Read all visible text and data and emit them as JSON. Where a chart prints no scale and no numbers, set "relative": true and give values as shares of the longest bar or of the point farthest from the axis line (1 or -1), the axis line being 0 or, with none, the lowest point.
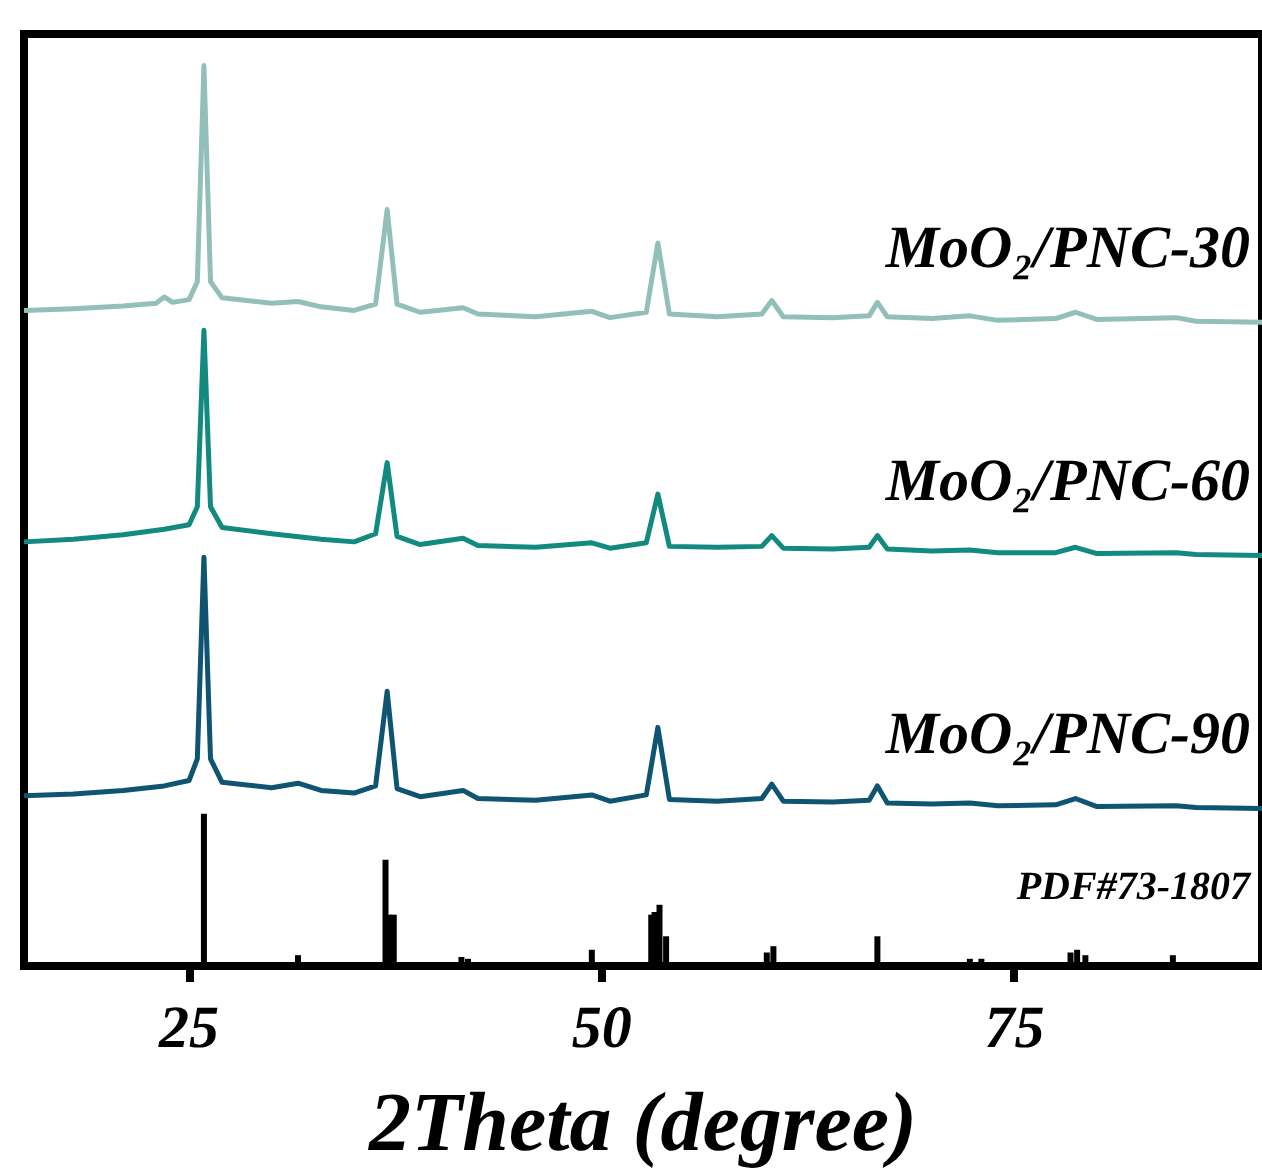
{
  "chart_data": {
    "type": "line",
    "relative": true,
    "xlabel": "2Theta (degree)",
    "xlim": [
      15,
      90
    ],
    "xticks": [
      25,
      50,
      75
    ],
    "grid": false,
    "series": [
      {
        "name": "MoO₂/PNC-30",
        "color": "#93bfbb",
        "x": [
          15,
          18,
          21,
          23,
          23.5,
          24,
          25,
          25.5,
          25.9,
          26.3,
          27,
          30,
          31.6,
          33,
          35,
          36.3,
          37,
          37.6,
          39,
          41.6,
          42.5,
          46,
          49.4,
          50.5,
          52.7,
          53.4,
          54.1,
          57,
          59.7,
          60.3,
          61,
          64,
          66.2,
          66.7,
          67.3,
          70,
          72.3,
          74,
          77.5,
          78.7,
          80,
          84.8,
          86,
          90
        ],
        "values": [
          0.728,
          0.73,
          0.733,
          0.736,
          0.743,
          0.737,
          0.74,
          0.76,
          1.0,
          0.76,
          0.742,
          0.736,
          0.738,
          0.732,
          0.728,
          0.735,
          0.84,
          0.735,
          0.726,
          0.731,
          0.724,
          0.721,
          0.727,
          0.72,
          0.726,
          0.803,
          0.724,
          0.721,
          0.724,
          0.739,
          0.721,
          0.72,
          0.722,
          0.737,
          0.721,
          0.719,
          0.722,
          0.717,
          0.719,
          0.726,
          0.718,
          0.72,
          0.716,
          0.715
        ]
      },
      {
        "name": "MoO₂/PNC-60",
        "color": "#138a80",
        "x": [
          15,
          18,
          21,
          23.5,
          25,
          25.5,
          25.9,
          26.3,
          27,
          30,
          33,
          35,
          36.3,
          37,
          37.6,
          39,
          41.6,
          42.5,
          46,
          49.4,
          50.5,
          52.7,
          53.4,
          54.1,
          57,
          59.7,
          60.3,
          61,
          64,
          66.2,
          66.7,
          67.3,
          70,
          72.3,
          74,
          77.5,
          78.7,
          80,
          84.8,
          86,
          90
        ],
        "values": [
          0.471,
          0.474,
          0.479,
          0.485,
          0.49,
          0.51,
          0.706,
          0.51,
          0.487,
          0.48,
          0.474,
          0.471,
          0.48,
          0.559,
          0.477,
          0.468,
          0.475,
          0.467,
          0.465,
          0.47,
          0.464,
          0.47,
          0.524,
          0.466,
          0.465,
          0.466,
          0.478,
          0.464,
          0.463,
          0.465,
          0.478,
          0.463,
          0.461,
          0.462,
          0.459,
          0.459,
          0.465,
          0.458,
          0.459,
          0.457,
          0.456
        ]
      },
      {
        "name": "MoO₂/PNC-90",
        "color": "#0f5470",
        "x": [
          15,
          18,
          21,
          23.5,
          25,
          25.5,
          25.9,
          26.3,
          27,
          30,
          31.6,
          33,
          35,
          36.3,
          37,
          37.6,
          39,
          41.6,
          42.5,
          46,
          49.4,
          50.5,
          52.7,
          53.4,
          54.1,
          57,
          59.7,
          60.3,
          61,
          64,
          66.2,
          66.7,
          67.3,
          70,
          72.3,
          74,
          77.5,
          78.7,
          80,
          84.8,
          86,
          90
        ],
        "values": [
          0.189,
          0.191,
          0.195,
          0.2,
          0.206,
          0.23,
          0.454,
          0.23,
          0.204,
          0.198,
          0.203,
          0.195,
          0.192,
          0.2,
          0.305,
          0.197,
          0.188,
          0.195,
          0.186,
          0.184,
          0.19,
          0.183,
          0.19,
          0.265,
          0.185,
          0.183,
          0.186,
          0.202,
          0.183,
          0.182,
          0.184,
          0.2,
          0.181,
          0.18,
          0.181,
          0.178,
          0.179,
          0.186,
          0.177,
          0.178,
          0.176,
          0.175
        ]
      },
      {
        "name": "PDF#73-1807",
        "type": "bar",
        "color": "#000000",
        "x": [
          25.9,
          31.6,
          36.9,
          37.1,
          37.4,
          41.5,
          41.9,
          49.4,
          53.0,
          53.2,
          53.5,
          53.9,
          60.0,
          60.4,
          66.7,
          72.3,
          73.0,
          78.4,
          78.8,
          79.3,
          84.6
        ],
        "values": [
          0.169,
          0.012,
          0.118,
          0.057,
          0.057,
          0.01,
          0.008,
          0.018,
          0.057,
          0.06,
          0.068,
          0.033,
          0.015,
          0.022,
          0.033,
          0.008,
          0.008,
          0.015,
          0.018,
          0.012,
          0.012
        ]
      }
    ]
  }
}
